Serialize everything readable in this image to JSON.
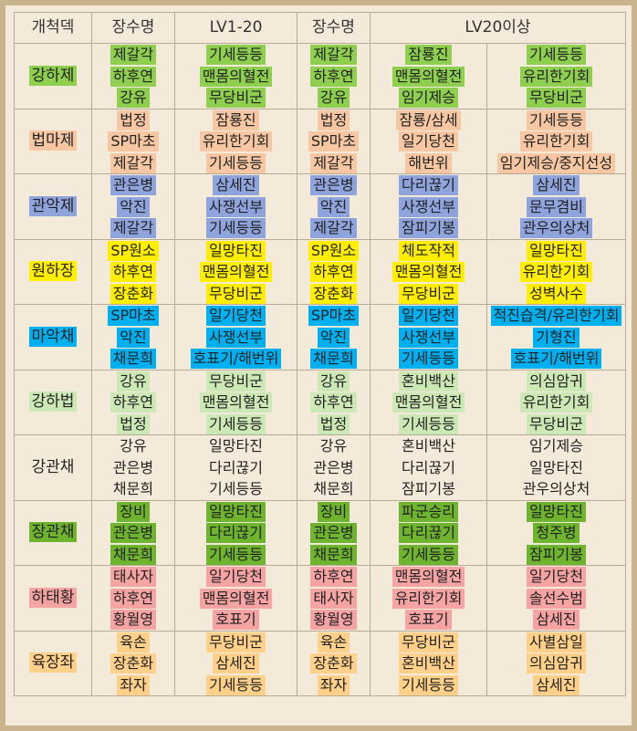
{
  "headers": [
    "개척덱",
    "장수명",
    "LV1-20",
    "장수명",
    "LV20이상"
  ],
  "groups": [
    {
      "deck": "강하제",
      "color": "c-green",
      "rows": [
        [
          "제갈각",
          "기세등등",
          "제갈각",
          "잠룡진",
          "기세등등"
        ],
        [
          "하후연",
          "맨몸의혈전",
          "하후연",
          "맨몸의혈전",
          "유리한기회"
        ],
        [
          "강유",
          "무당비군",
          "강유",
          "임기제승",
          "무당비군"
        ]
      ]
    },
    {
      "deck": "법마제",
      "color": "c-peach",
      "rows": [
        [
          "법정",
          "잠룡진",
          "법정",
          "잠룡/삼세",
          "기세등등"
        ],
        [
          "SP마초",
          "유리한기회",
          "SP마초",
          "일기당천",
          "유리한기회"
        ],
        [
          "제갈각",
          "기세등등",
          "제갈각",
          "해번위",
          "임기제승/중지선성"
        ]
      ]
    },
    {
      "deck": "관악제",
      "color": "c-blue",
      "rows": [
        [
          "관은병",
          "삼세진",
          "관은병",
          "다리끊기",
          "삼세진"
        ],
        [
          "악진",
          "사쟁선부",
          "악진",
          "사쟁선부",
          "문무겸비"
        ],
        [
          "제갈각",
          "기세등등",
          "제갈각",
          "잠피기봉",
          "관우의상처"
        ]
      ]
    },
    {
      "deck": "원하장",
      "color": "c-yellow",
      "rows": [
        [
          "SP원소",
          "일망타진",
          "SP원소",
          "체도작적",
          "일망타진"
        ],
        [
          "하후연",
          "맨몸의혈전",
          "하후연",
          "맨몸의혈전",
          "유리한기회"
        ],
        [
          "장춘화",
          "무당비군",
          "장춘화",
          "무당비군",
          "성벽사수"
        ]
      ]
    },
    {
      "deck": "마악채",
      "color": "c-cyan",
      "rows": [
        [
          "SP마초",
          "일기당천",
          "SP마초",
          "일기당천",
          "적진습격/유리한기회"
        ],
        [
          "악진",
          "사쟁선부",
          "악진",
          "사쟁선부",
          "기형진"
        ],
        [
          "채문희",
          "호표기/해번위",
          "채문희",
          "기세등등",
          "호표기/해번위"
        ]
      ]
    },
    {
      "deck": "강하법",
      "color": "c-lgreen",
      "rows": [
        [
          "강유",
          "무당비군",
          "강유",
          "혼비백산",
          "의심암귀"
        ],
        [
          "하후연",
          "맨몸의혈전",
          "하후연",
          "맨몸의혈전",
          "유리한기회"
        ],
        [
          "법정",
          "기세등등",
          "법정",
          "기세등등",
          "무당비군"
        ]
      ]
    },
    {
      "deck": "강관채",
      "color": "c-none",
      "rows": [
        [
          "강유",
          "일망타진",
          "강유",
          "혼비백산",
          "임기제승"
        ],
        [
          "관은병",
          "다리끊기",
          "관은병",
          "다리끊기",
          "일망타진"
        ],
        [
          "채문희",
          "기세등등",
          "채문희",
          "잠피기봉",
          "관우의상처"
        ]
      ]
    },
    {
      "deck": "장관채",
      "color": "c-dgreen",
      "rows": [
        [
          "장비",
          "일망타진",
          "장비",
          "파군승리",
          "일망타진"
        ],
        [
          "관은병",
          "다리끊기",
          "관은병",
          "다리끊기",
          "청주병"
        ],
        [
          "채문희",
          "기세등등",
          "채문희",
          "기세등등",
          "잠피기봉"
        ]
      ]
    },
    {
      "deck": "하태황",
      "color": "c-pink",
      "rows": [
        [
          "태사자",
          "일기당천",
          "하후연",
          "맨몸의혈전",
          "일기당천"
        ],
        [
          "하후연",
          "맨몸의혈전",
          "태사자",
          "유리한기회",
          "솔선수범"
        ],
        [
          "황월영",
          "호표기",
          "황월영",
          "호표기",
          "삼세진"
        ]
      ]
    },
    {
      "deck": "육장좌",
      "color": "c-orange",
      "rows": [
        [
          "육손",
          "무당비군",
          "육손",
          "무당비군",
          "사별삼일"
        ],
        [
          "장춘화",
          "삼세진",
          "장춘화",
          "혼비백산",
          "의심암귀"
        ],
        [
          "좌자",
          "기세등등",
          "좌자",
          "기세등등",
          "삼세진"
        ]
      ]
    }
  ]
}
